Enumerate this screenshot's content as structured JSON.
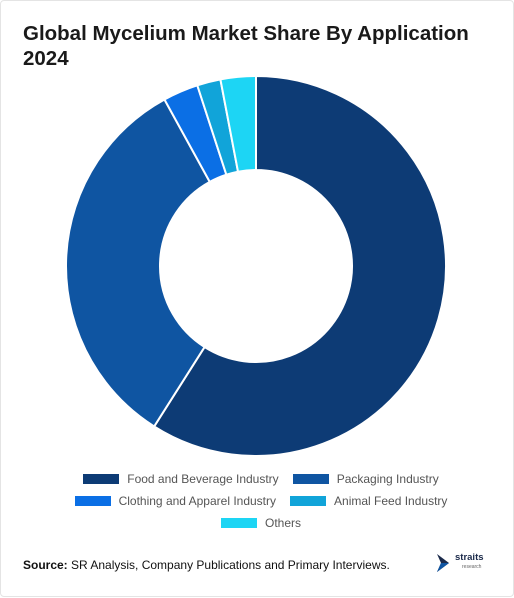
{
  "chart_data": {
    "type": "pie",
    "title": "Global Mycelium Market Share By Application 2024",
    "labels": [
      "Food and Beverage Industry",
      "Packaging Industry",
      "Clothing and Apparel Industry",
      "Animal Feed Industry",
      "Others"
    ],
    "values": [
      59,
      33,
      3,
      2,
      3
    ],
    "colors": [
      "#0d3b75",
      "#0f55a2",
      "#0b6fe5",
      "#11a4d9",
      "#1dd5f4"
    ],
    "donut": true,
    "legend_position": "bottom"
  },
  "source": {
    "label": "Source:",
    "text": " SR Analysis, Company Publications and Primary Interviews."
  },
  "logo": {
    "name": "straits",
    "sub": "research"
  }
}
